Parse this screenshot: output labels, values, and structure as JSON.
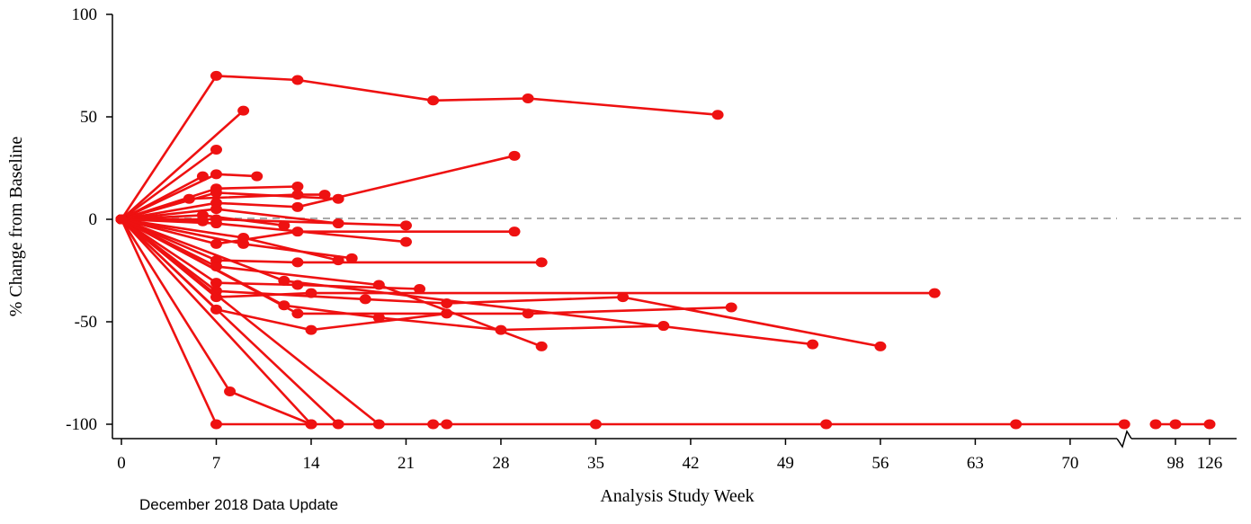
{
  "chart_data": {
    "type": "line",
    "xlabel": "Analysis Study Week",
    "ylabel": "% Change from Baseline",
    "footnote": "December 2018 Data Update",
    "x_ticks": [
      "0",
      "7",
      "14",
      "21",
      "28",
      "35",
      "42",
      "49",
      "56",
      "63",
      "70",
      "98",
      "126"
    ],
    "y_ticks": [
      "100",
      "50",
      "0",
      "-50",
      "-100"
    ],
    "ylim": [
      -100,
      100
    ],
    "xlim_primary": [
      0,
      74
    ],
    "x_axis_break": "between 70 and 98",
    "x_after_break": [
      98,
      126
    ],
    "reference_line": {
      "y": 0,
      "style": "dashed",
      "color": "#aaaaaa"
    },
    "series_color": "#ee1111",
    "series": [
      {
        "x": [
          0,
          7,
          13,
          23,
          30,
          44
        ],
        "y": [
          0,
          70,
          68,
          58,
          59,
          51
        ]
      },
      {
        "x": [
          0,
          9
        ],
        "y": [
          0,
          53
        ]
      },
      {
        "x": [
          0,
          7
        ],
        "y": [
          0,
          34
        ]
      },
      {
        "x": [
          0,
          6
        ],
        "y": [
          0,
          21
        ]
      },
      {
        "x": [
          0,
          7,
          10
        ],
        "y": [
          0,
          22,
          21
        ]
      },
      {
        "x": [
          0,
          7,
          13
        ],
        "y": [
          0,
          15,
          16
        ]
      },
      {
        "x": [
          0,
          5,
          13,
          15
        ],
        "y": [
          0,
          10,
          12,
          12
        ]
      },
      {
        "x": [
          0,
          7,
          16
        ],
        "y": [
          0,
          13,
          10
        ]
      },
      {
        "x": [
          0,
          7,
          13,
          29
        ],
        "y": [
          0,
          8,
          6,
          31
        ]
      },
      {
        "x": [
          0,
          7,
          16
        ],
        "y": [
          0,
          5,
          -2
        ]
      },
      {
        "x": [
          0,
          6,
          12
        ],
        "y": [
          0,
          2,
          -3
        ]
      },
      {
        "x": [
          0,
          7,
          21
        ],
        "y": [
          0,
          0,
          -3
        ]
      },
      {
        "x": [
          0,
          7,
          21
        ],
        "y": [
          0,
          -2,
          -11
        ]
      },
      {
        "x": [
          0,
          9,
          16
        ],
        "y": [
          0,
          -9,
          -20
        ]
      },
      {
        "x": [
          0,
          6
        ],
        "y": [
          0,
          -1
        ]
      },
      {
        "x": [
          0,
          7,
          13,
          29
        ],
        "y": [
          0,
          -12,
          -6,
          -6
        ]
      },
      {
        "x": [
          0,
          9,
          17
        ],
        "y": [
          0,
          -12,
          -19
        ]
      },
      {
        "x": [
          0,
          7,
          13,
          31
        ],
        "y": [
          0,
          -20,
          -21,
          -21
        ]
      },
      {
        "x": [
          0,
          7,
          19,
          31
        ],
        "y": [
          0,
          -23,
          -32,
          -62
        ]
      },
      {
        "x": [
          0,
          7,
          13,
          22
        ],
        "y": [
          0,
          -31,
          -32,
          -34
        ]
      },
      {
        "x": [
          0,
          7,
          18,
          24,
          37,
          56
        ],
        "y": [
          0,
          -35,
          -39,
          -41,
          -38,
          -62
        ]
      },
      {
        "x": [
          0,
          7,
          14,
          60
        ],
        "y": [
          0,
          -38,
          -36,
          -36
        ]
      },
      {
        "x": [
          0,
          13,
          30,
          45
        ],
        "y": [
          0,
          -46,
          -46,
          -43
        ]
      },
      {
        "x": [
          0,
          7,
          14,
          24
        ],
        "y": [
          0,
          -44,
          -54,
          -46
        ]
      },
      {
        "x": [
          0,
          12,
          19,
          28,
          40
        ],
        "y": [
          0,
          -42,
          -48,
          -54,
          -52
        ]
      },
      {
        "x": [
          0,
          12,
          51
        ],
        "y": [
          0,
          -30,
          -61
        ]
      },
      {
        "x": [
          0,
          8,
          14
        ],
        "y": [
          0,
          -84,
          -100
        ]
      },
      {
        "x": [
          0,
          7,
          23,
          24,
          35,
          52,
          66,
          74
        ],
        "y": [
          0,
          -100,
          -100,
          -100,
          -100,
          -100,
          -100,
          -100
        ]
      },
      {
        "x": [
          0,
          14
        ],
        "y": [
          0,
          -100
        ]
      },
      {
        "x": [
          0,
          16
        ],
        "y": [
          0,
          -100
        ]
      },
      {
        "x": [
          0,
          19
        ],
        "y": [
          0,
          -100
        ]
      },
      {
        "x": [
          96,
          98,
          126
        ],
        "y": [
          -100,
          -100,
          -100
        ]
      }
    ]
  }
}
